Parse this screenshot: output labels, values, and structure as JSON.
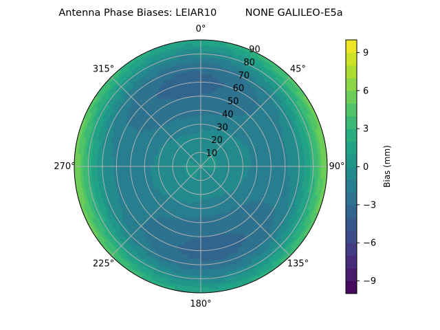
{
  "chart_data": {
    "type": "polar-contour",
    "title": "Antenna Phase Biases: LEIAR10         NONE GALILEO-E5a",
    "angular_ticks": [
      "0°",
      "45°",
      "90°",
      "135°",
      "180°",
      "225°",
      "270°",
      "315°"
    ],
    "radial_ticks": [
      "10",
      "20",
      "30",
      "40",
      "50",
      "60",
      "70",
      "80",
      "90"
    ],
    "radial_range": [
      0,
      90
    ],
    "grid": true,
    "colorbar": {
      "label": "Bias (mm)",
      "range": [
        -10,
        10
      ],
      "levels": 20,
      "ticks": [
        "−9",
        "−6",
        "−3",
        "0",
        "3",
        "6",
        "9"
      ],
      "tick_values": [
        -9,
        -6,
        -3,
        0,
        3,
        6,
        9
      ],
      "colormap": "viridis"
    },
    "zenith_profile": {
      "zenith_deg": [
        0,
        10,
        20,
        30,
        40,
        50,
        60,
        70,
        80,
        90
      ],
      "bias_mm": [
        0,
        0,
        -0.5,
        -1,
        -1.8,
        -2.2,
        -2.3,
        -1.5,
        1,
        4
      ]
    },
    "azimuth_modulation_mm": 1.8
  }
}
